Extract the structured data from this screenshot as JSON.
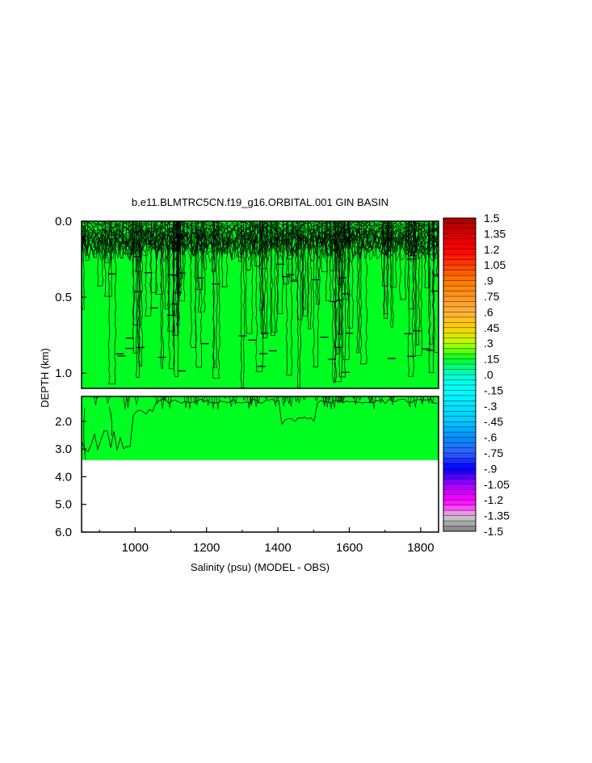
{
  "chart_data": {
    "type": "heatmap",
    "title": "b.e11.BLMTRC5CN.f19_g16.ORBITAL.001 GIN BASIN",
    "xlabel": "Salinity (psu) (MODEL - OBS)",
    "ylabel": "DEPTH (km)",
    "xlim": [
      850,
      1850
    ],
    "x_ticks": [
      1000,
      1200,
      1400,
      1600,
      1800
    ],
    "upper_panel": {
      "ylim": [
        0.0,
        1.1
      ],
      "y_ticks": [
        "0.0",
        "0.5",
        "1.0"
      ],
      "y_tick_values": [
        0.0,
        0.5,
        1.0
      ]
    },
    "lower_panel": {
      "ylim": [
        1.1,
        6.0
      ],
      "y_ticks": [
        "2.0",
        "3.0",
        "4.0",
        "5.0",
        "6.0"
      ],
      "y_tick_values": [
        2.0,
        3.0,
        4.0,
        5.0,
        6.0
      ],
      "data_bottom_depth": 3.4
    },
    "field_value_range": [
      0.0,
      0.15
    ],
    "field_color": "#00ff20",
    "colorbar": {
      "min": -1.5,
      "max": 1.5,
      "labels": [
        "1.5",
        "1.35",
        "1.2",
        "1.05",
        ".9",
        ".75",
        ".6",
        ".45",
        ".3",
        ".15",
        ".0",
        "-.15",
        "-.3",
        "-.45",
        "-.6",
        "-.75",
        "-.9",
        "-1.05",
        "-1.2",
        "-1.35",
        "-1.5"
      ],
      "label_values": [
        1.5,
        1.35,
        1.2,
        1.05,
        0.9,
        0.75,
        0.6,
        0.45,
        0.3,
        0.15,
        0.0,
        -0.15,
        -0.3,
        -0.45,
        -0.6,
        -0.75,
        -0.9,
        -1.05,
        -1.2,
        -1.35,
        -1.5
      ],
      "color_stops": [
        {
          "value": 1.5,
          "color": "#aa0000"
        },
        {
          "value": 1.2,
          "color": "#ff0000"
        },
        {
          "value": 0.9,
          "color": "#ff7a00"
        },
        {
          "value": 0.6,
          "color": "#ffb040"
        },
        {
          "value": 0.45,
          "color": "#ffd000"
        },
        {
          "value": 0.3,
          "color": "#b8ff00"
        },
        {
          "value": 0.15,
          "color": "#00ff20"
        },
        {
          "value": 0.0,
          "color": "#00ffd0"
        },
        {
          "value": -0.15,
          "color": "#00ffff"
        },
        {
          "value": -0.45,
          "color": "#00c8ff"
        },
        {
          "value": -0.6,
          "color": "#0090ff"
        },
        {
          "value": -0.75,
          "color": "#3060ff"
        },
        {
          "value": -0.9,
          "color": "#0000ff"
        },
        {
          "value": -1.05,
          "color": "#a000ff"
        },
        {
          "value": -1.2,
          "color": "#ff00ff"
        },
        {
          "value": -1.3,
          "color": "#ff60ff"
        },
        {
          "value": -1.35,
          "color": "#d0d0d0"
        },
        {
          "value": -1.5,
          "color": "#808080"
        }
      ]
    }
  }
}
